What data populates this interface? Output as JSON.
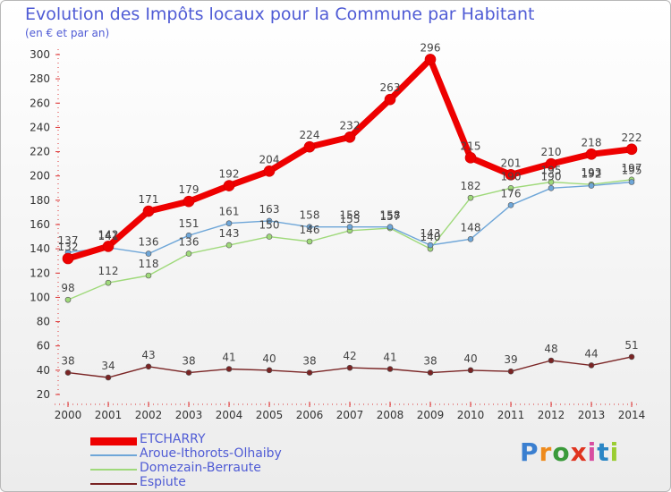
{
  "header": {
    "title": "Evolution des Impôts locaux pour la Commune par Habitant",
    "subtitle": "(en € et par an)"
  },
  "logo": {
    "text": "Proxiti",
    "colors": [
      "#3a7fd0",
      "#ee8a1c",
      "#3a9a3a",
      "#e0341f",
      "#d84ea0",
      "#2b86c5",
      "#9acd32"
    ]
  },
  "chart_data": {
    "type": "line",
    "x": [
      "2000",
      "2001",
      "2002",
      "2003",
      "2004",
      "2005",
      "2006",
      "2007",
      "2008",
      "2009",
      "2010",
      "2011",
      "2012",
      "2013",
      "2014"
    ],
    "ylim": [
      20,
      300
    ],
    "yticks": [
      20,
      40,
      60,
      80,
      100,
      120,
      140,
      160,
      180,
      200,
      220,
      240,
      260,
      280,
      300
    ],
    "grid": false,
    "legend": "bottom-left",
    "series": [
      {
        "name": "ETCHARRY",
        "color": "#ee0000",
        "values": [
          132,
          142,
          171,
          179,
          192,
          204,
          224,
          232,
          263,
          296,
          215,
          201,
          210,
          218,
          222
        ]
      },
      {
        "name": "Aroue-Ithorots-Olhaiby",
        "color": "#6ea6d8",
        "values": [
          137,
          141,
          136,
          151,
          161,
          163,
          158,
          158,
          158,
          143,
          148,
          176,
          190,
          192,
          195
        ]
      },
      {
        "name": "Domezain-Berraute",
        "color": "#9fd97a",
        "values": [
          98,
          112,
          118,
          136,
          143,
          150,
          146,
          155,
          157,
          140,
          182,
          190,
          195,
          193,
          197
        ]
      },
      {
        "name": "Espiute",
        "color": "#7a2424",
        "values": [
          38,
          34,
          43,
          38,
          41,
          40,
          38,
          42,
          41,
          38,
          40,
          39,
          48,
          44,
          51
        ]
      }
    ],
    "labels": [
      [
        "132",
        "142",
        "171",
        "179",
        "192",
        "204",
        "224",
        "232",
        "263",
        "296",
        "215",
        "201",
        "210",
        "218",
        "222"
      ],
      [
        "137",
        "141",
        "136",
        "151",
        "161",
        "163",
        "158",
        "158",
        "158",
        "143",
        "148",
        "176",
        "190",
        "192",
        "195"
      ],
      [
        "98",
        "112",
        "118",
        "136",
        "143",
        "150",
        "146",
        "155",
        "157",
        "140",
        "182",
        "190",
        "195",
        "193",
        "197"
      ],
      [
        "38",
        "34",
        "43",
        "38",
        "41",
        "40",
        "38",
        "42",
        "41",
        "38",
        "40",
        "39",
        "48",
        "44",
        "51"
      ]
    ]
  }
}
